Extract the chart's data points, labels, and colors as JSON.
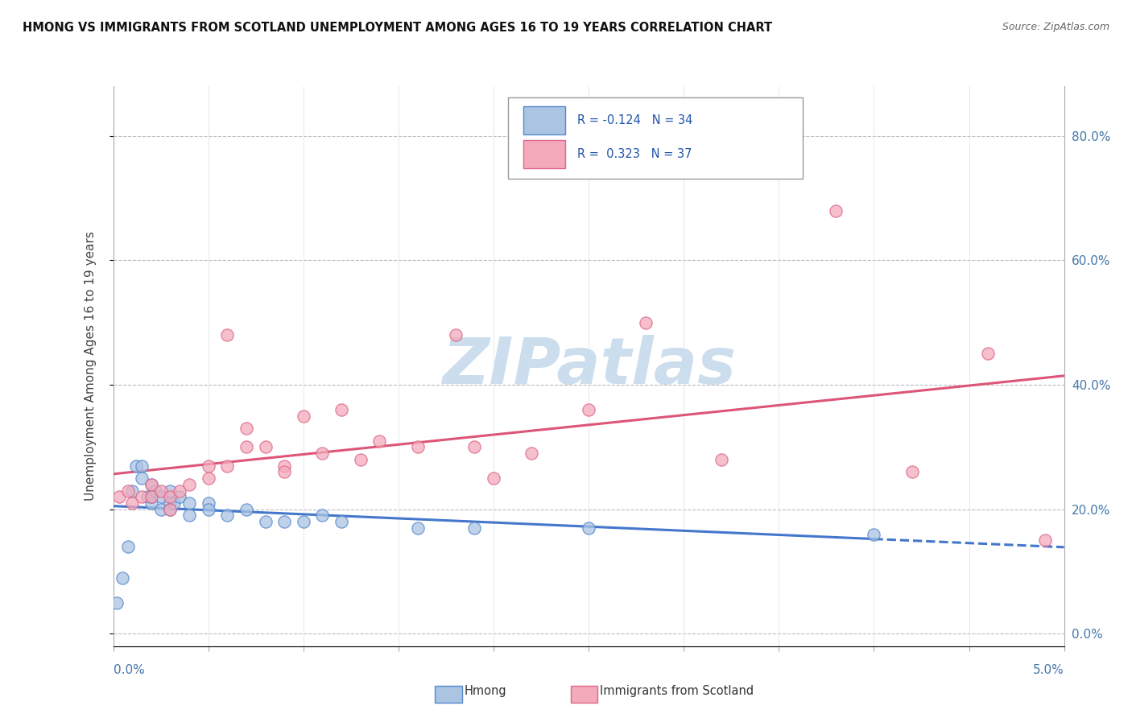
{
  "title": "HMONG VS IMMIGRANTS FROM SCOTLAND UNEMPLOYMENT AMONG AGES 16 TO 19 YEARS CORRELATION CHART",
  "source": "Source: ZipAtlas.com",
  "ylabel": "Unemployment Among Ages 16 to 19 years",
  "legend1_r": "-0.124",
  "legend1_n": "34",
  "legend2_r": "0.323",
  "legend2_n": "37",
  "hmong_color": "#aac4e2",
  "hmong_edge": "#5588cc",
  "scotland_color": "#f4aabb",
  "scotland_edge": "#dd6688",
  "trendline_hmong_color": "#4477cc",
  "trendline_scotland_color": "#dd5577",
  "watermark_color": "#ccdded",
  "xmin": 0.0,
  "xmax": 0.05,
  "ymin": -0.02,
  "ymax": 0.88,
  "yticks": [
    0.0,
    0.2,
    0.4,
    0.6,
    0.8
  ],
  "hmong_x": [
    0.0002,
    0.0005,
    0.0008,
    0.001,
    0.0012,
    0.0015,
    0.0015,
    0.0018,
    0.002,
    0.002,
    0.002,
    0.0022,
    0.0025,
    0.0025,
    0.003,
    0.003,
    0.003,
    0.0032,
    0.0035,
    0.004,
    0.004,
    0.005,
    0.005,
    0.006,
    0.007,
    0.008,
    0.009,
    0.01,
    0.011,
    0.012,
    0.016,
    0.019,
    0.025,
    0.04
  ],
  "hmong_y": [
    0.05,
    0.09,
    0.14,
    0.23,
    0.27,
    0.27,
    0.25,
    0.22,
    0.21,
    0.24,
    0.22,
    0.23,
    0.22,
    0.2,
    0.21,
    0.23,
    0.2,
    0.21,
    0.22,
    0.21,
    0.19,
    0.21,
    0.2,
    0.19,
    0.2,
    0.18,
    0.18,
    0.18,
    0.19,
    0.18,
    0.17,
    0.17,
    0.17,
    0.16
  ],
  "scotland_x": [
    0.0003,
    0.0008,
    0.001,
    0.0015,
    0.002,
    0.002,
    0.0025,
    0.003,
    0.003,
    0.0035,
    0.004,
    0.005,
    0.005,
    0.006,
    0.006,
    0.007,
    0.007,
    0.008,
    0.009,
    0.009,
    0.01,
    0.011,
    0.012,
    0.013,
    0.014,
    0.016,
    0.018,
    0.019,
    0.02,
    0.022,
    0.025,
    0.028,
    0.032,
    0.038,
    0.042,
    0.046,
    0.049
  ],
  "scotland_y": [
    0.22,
    0.23,
    0.21,
    0.22,
    0.24,
    0.22,
    0.23,
    0.22,
    0.2,
    0.23,
    0.24,
    0.27,
    0.25,
    0.27,
    0.48,
    0.3,
    0.33,
    0.3,
    0.27,
    0.26,
    0.35,
    0.29,
    0.36,
    0.28,
    0.31,
    0.3,
    0.48,
    0.3,
    0.25,
    0.29,
    0.36,
    0.5,
    0.28,
    0.68,
    0.26,
    0.45,
    0.15
  ]
}
